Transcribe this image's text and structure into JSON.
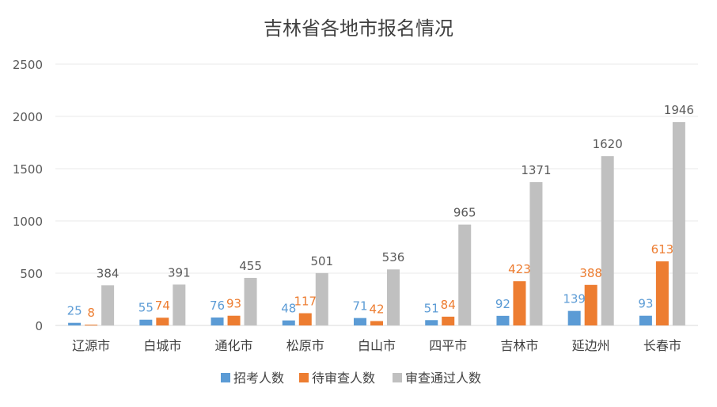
{
  "chart_data": {
    "type": "bar",
    "title": "吉林省各地市报名情况",
    "xlabel": "",
    "ylabel": "",
    "ylim": [
      0,
      2500
    ],
    "yticks": [
      0,
      500,
      1000,
      1500,
      2000,
      2500
    ],
    "grid": true,
    "legend_position": "bottom",
    "categories": [
      "辽源市",
      "白城市",
      "通化市",
      "松原市",
      "白山市",
      "四平市",
      "吉林市",
      "延边州",
      "长春市"
    ],
    "series": [
      {
        "name": "招考人数",
        "color": "#5B9BD5",
        "values": [
          25,
          55,
          76,
          48,
          71,
          51,
          92,
          139,
          93
        ]
      },
      {
        "name": "待审查人数",
        "color": "#ED7D31",
        "values": [
          8,
          74,
          93,
          117,
          42,
          84,
          423,
          388,
          613
        ]
      },
      {
        "name": "审查通过人数",
        "color": "#C0C0C0",
        "values": [
          384,
          391,
          455,
          501,
          536,
          965,
          1371,
          1620,
          1946
        ]
      }
    ]
  }
}
